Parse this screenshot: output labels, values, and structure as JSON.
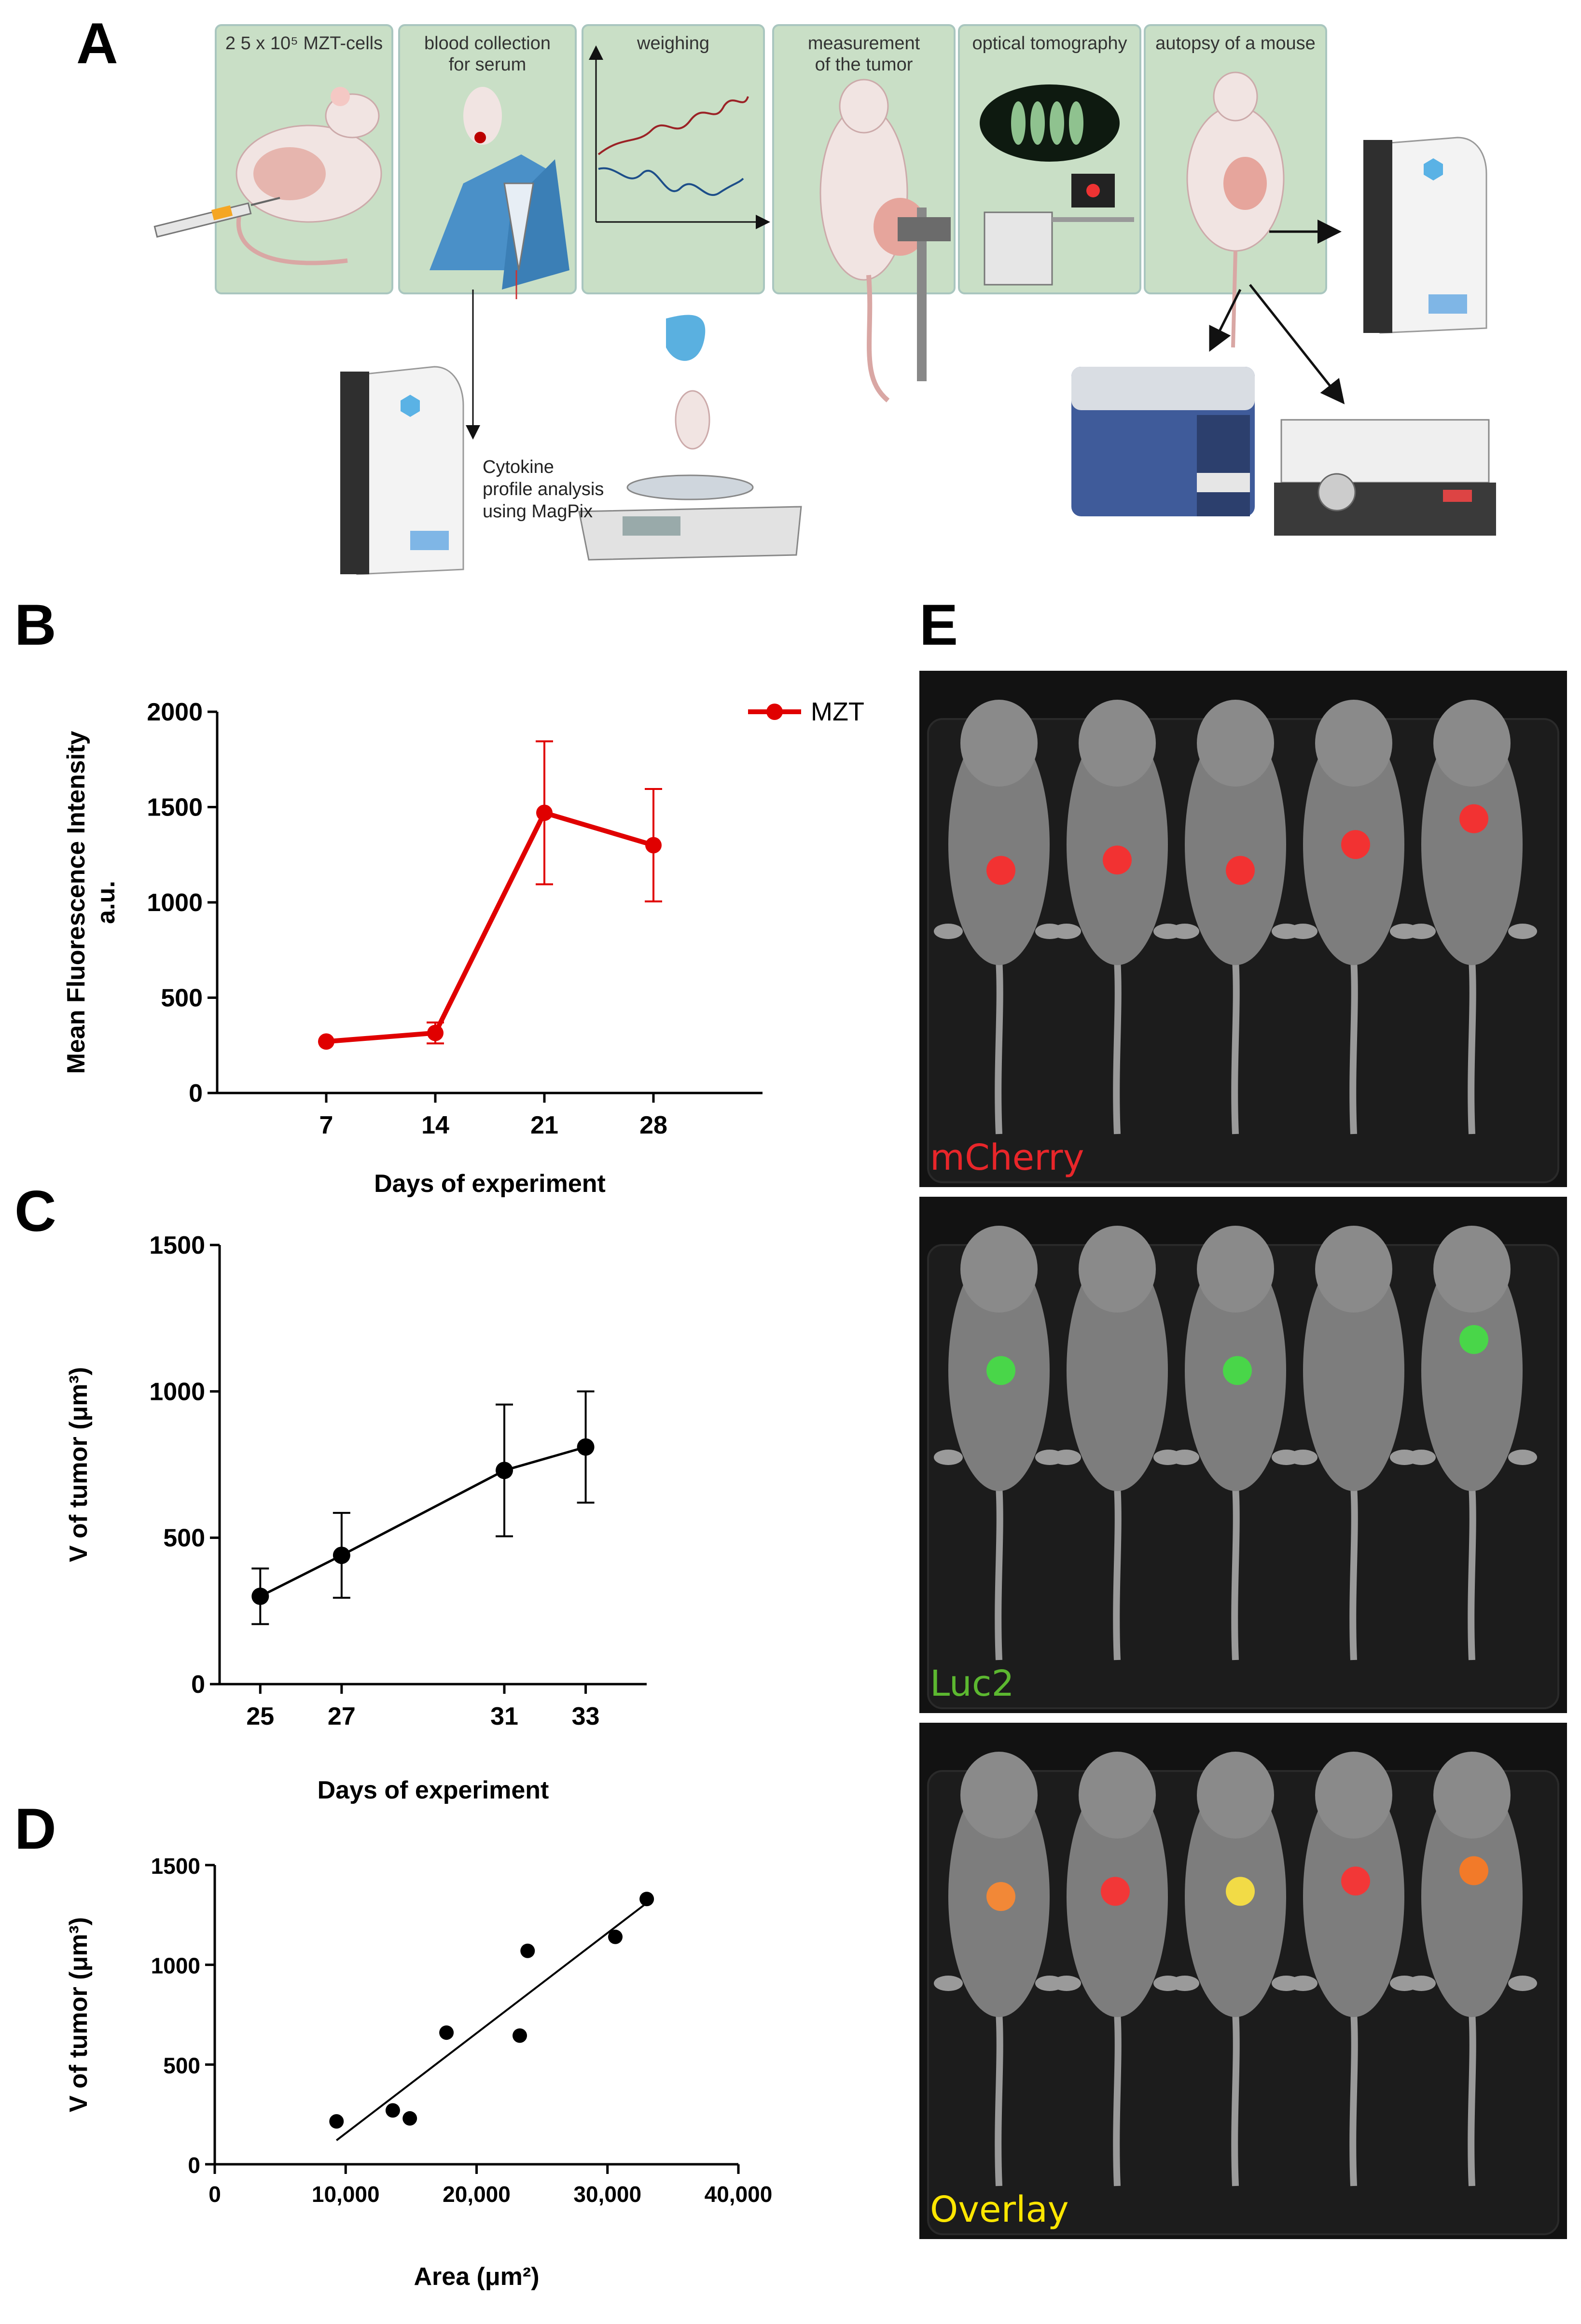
{
  "panels": {
    "a": "A",
    "b": "B",
    "c": "C",
    "d": "D",
    "e": "E"
  },
  "workflow": {
    "steps": [
      {
        "label": "2 5 x 10⁵ MZT-cells"
      },
      {
        "label": "blood collection\nfor serum"
      },
      {
        "label": "weighing"
      },
      {
        "label": "measurement\nof the tumor"
      },
      {
        "label": "optical tomography"
      },
      {
        "label": "autopsy of a mouse"
      }
    ],
    "cytokine_note": "Cytokine\nprofile analysis\nusing MagPix"
  },
  "chart_data": [
    {
      "panel": "B",
      "type": "line",
      "x": [
        7,
        14,
        21,
        28
      ],
      "series": [
        {
          "name": "MZT",
          "values": [
            270,
            315,
            1470,
            1300
          ],
          "error": [
            0,
            55,
            375,
            295
          ],
          "color": "#e00000"
        }
      ],
      "ylim": [
        0,
        2000
      ],
      "yticks": [
        "0",
        "500",
        "1000",
        "1500",
        "2000"
      ],
      "xticks": [
        "7",
        "14",
        "21",
        "28"
      ],
      "xlim": [
        0,
        35
      ],
      "ylabel": "Mean Fluorescence Intensity",
      "ylabel2": "a.u.",
      "xlabel": "Days of experiment",
      "legend": "MZT"
    },
    {
      "panel": "C",
      "type": "line",
      "x": [
        25,
        27,
        31,
        33
      ],
      "series": [
        {
          "name": "V of tumor",
          "values": [
            300,
            440,
            730,
            810
          ],
          "error": [
            95,
            145,
            225,
            190
          ],
          "color": "#000000"
        }
      ],
      "ylim": [
        0,
        1500
      ],
      "yticks": [
        "0",
        "500",
        "1000",
        "1500"
      ],
      "xticks": [
        "25",
        "27",
        "31",
        "33"
      ],
      "xlim": [
        24,
        34.5
      ],
      "ylabel": "V of tumor (μm³)",
      "xlabel": "Days of experiment"
    },
    {
      "panel": "D",
      "type": "scatter",
      "points": [
        [
          9300,
          215
        ],
        [
          13600,
          270
        ],
        [
          14900,
          230
        ],
        [
          17700,
          660
        ],
        [
          23300,
          645
        ],
        [
          23900,
          1070
        ],
        [
          30600,
          1140
        ],
        [
          33000,
          1330
        ]
      ],
      "trendline": [
        [
          9300,
          120
        ],
        [
          33000,
          1310
        ]
      ],
      "ylim": [
        0,
        1500
      ],
      "xlim": [
        0,
        40000
      ],
      "yticks": [
        "0",
        "500",
        "1000",
        "1500"
      ],
      "xticks": [
        "0",
        "10,000",
        "20,000",
        "30,000",
        "40,000"
      ],
      "ylabel": "V of tumor (μm³)",
      "xlabel": "Area (μm²)"
    }
  ],
  "imaging": {
    "channels": [
      {
        "label": "mCherry",
        "color": "#e8262a"
      },
      {
        "label": "Luc2",
        "color": "#5cb830"
      },
      {
        "label": "Overlay",
        "color": "#ffe600"
      }
    ]
  }
}
